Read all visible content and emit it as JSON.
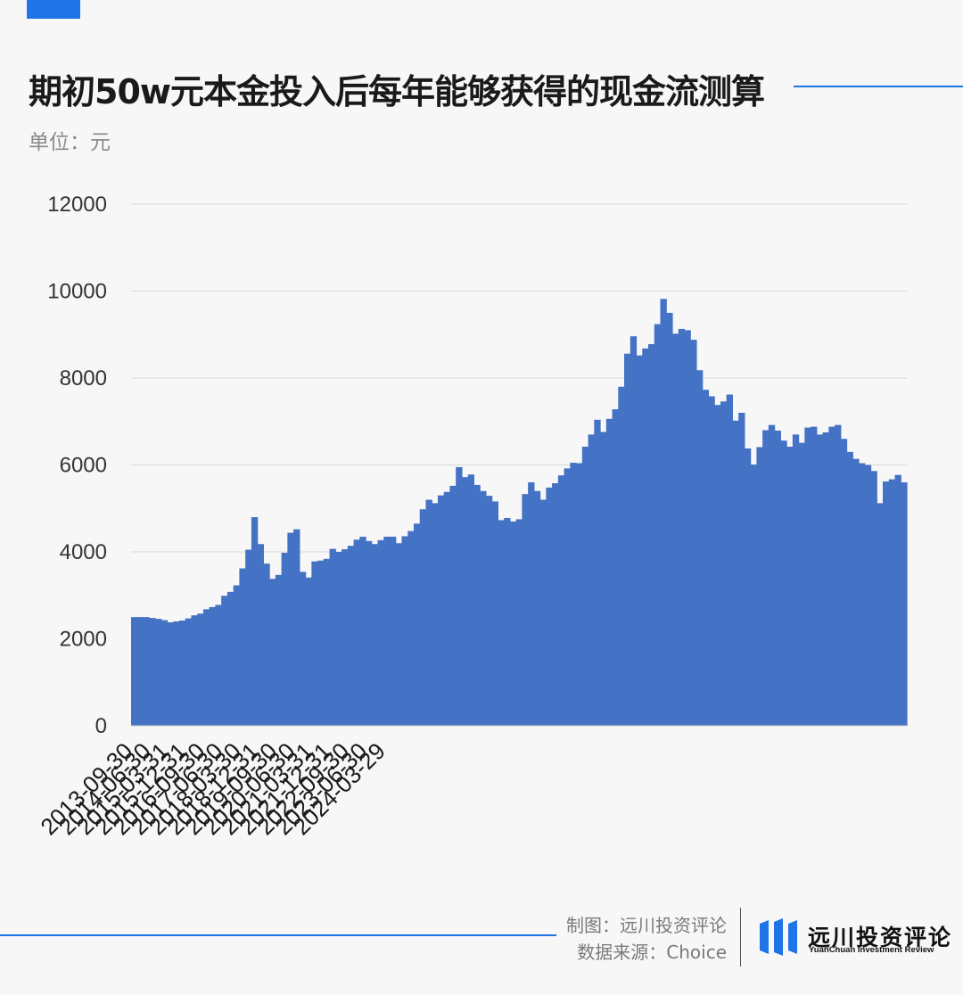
{
  "header": {
    "title": "期初50w元本金投入后每年能够获得的现金流测算",
    "unit": "单位：元"
  },
  "footer": {
    "made_by": "制图：远川投资评论",
    "source": "数据来源：Choice",
    "logo_cn": "远川投资评论",
    "logo_en": "YuanChuan Investment Review"
  },
  "colors": {
    "accent": "#1f74e8",
    "bars": "#4472c4",
    "grid": "#d9d9d9"
  },
  "chart_data": {
    "type": "bar",
    "title": "期初50w元本金投入后每年能够获得的现金流测算",
    "ylabel": "单位：元",
    "xlabel": "",
    "ylim": [
      0,
      12000
    ],
    "yticks": [
      0,
      2000,
      4000,
      6000,
      8000,
      10000,
      12000
    ],
    "grid": true,
    "x_tick_labels": [
      "2013-09-30",
      "2014-06-30",
      "2015-03-31",
      "2015-12-31",
      "2016-09-30",
      "2017-06-30",
      "2018-03-30",
      "2018-12-31",
      "2019-09-30",
      "2020-06-30",
      "2021-03-31",
      "2021-12-31",
      "2022-09-30",
      "2023-06-30",
      "2024-03-29"
    ],
    "x_tick_every": 3,
    "values": [
      2500,
      2500,
      2500,
      2480,
      2460,
      2430,
      2380,
      2400,
      2420,
      2470,
      2540,
      2580,
      2680,
      2730,
      2780,
      2990,
      3080,
      3230,
      3620,
      4050,
      4800,
      4180,
      3730,
      3380,
      3470,
      3980,
      4440,
      4520,
      3540,
      3410,
      3780,
      3800,
      3840,
      4070,
      4000,
      4060,
      4140,
      4280,
      4350,
      4250,
      4180,
      4270,
      4350,
      4350,
      4200,
      4360,
      4480,
      4650,
      4980,
      5200,
      5120,
      5300,
      5380,
      5520,
      5950,
      5720,
      5780,
      5540,
      5400,
      5290,
      5160,
      4730,
      4780,
      4700,
      4750,
      5330,
      5600,
      5400,
      5200,
      5480,
      5580,
      5760,
      5920,
      6050,
      6040,
      6420,
      6700,
      7040,
      6760,
      7060,
      7280,
      7800,
      8560,
      8960,
      8520,
      8680,
      8780,
      9240,
      9820,
      9500,
      9020,
      9130,
      9100,
      8880,
      8180,
      7730,
      7580,
      7380,
      7460,
      7620,
      7020,
      7200,
      6380,
      6010,
      6410,
      6800,
      6920,
      6790,
      6560,
      6420,
      6700,
      6510,
      6860,
      6880,
      6700,
      6750,
      6880,
      6920,
      6600,
      6300,
      6140,
      6040,
      6000,
      5860,
      5120,
      5620,
      5670,
      5770,
      5600
    ]
  }
}
